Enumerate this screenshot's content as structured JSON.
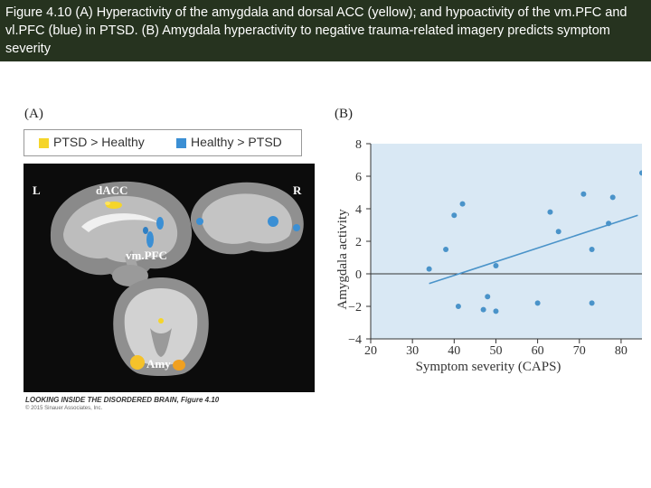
{
  "header": {
    "title": "Figure 4.10 (A) Hyperactivity of the amygdala and dorsal ACC (yellow); and hypoactivity of the vm.PFC and vl.PFC (blue) in PTSD. (B) Amygdala hyperactivity to negative trauma-related imagery predicts symptom severity"
  },
  "panel_a": {
    "label": "(A)",
    "legend": [
      {
        "label": "PTSD > Healthy",
        "color": "#f5d52a"
      },
      {
        "label": "Healthy > PTSD",
        "color": "#3b8fd4"
      }
    ],
    "labels": {
      "left": "L",
      "right": "R",
      "dacc": "dACC",
      "vmpfc": "vm.PFC",
      "amy": "Amy"
    },
    "caption": "LOOKING INSIDE THE DISORDERED BRAIN, Figure 4.10",
    "copyright": "© 2015 Sinauer Associates, Inc."
  },
  "panel_b": {
    "label": "(B)"
  },
  "colors": {
    "banner": "#26331f",
    "plot_bg": "#d9e8f4",
    "point": "#4a93c9",
    "line": "#4a93c9"
  },
  "chart_data": {
    "type": "scatter",
    "xlabel": "Symptom severity (CAPS)",
    "ylabel": "Amygdala activity",
    "xlim": [
      20,
      85
    ],
    "ylim": [
      -4,
      8
    ],
    "xticks": [
      20,
      30,
      40,
      50,
      60,
      70,
      80
    ],
    "yticks": [
      -4,
      -2,
      0,
      2,
      4,
      6,
      8
    ],
    "points": [
      {
        "x": 34,
        "y": 0.3
      },
      {
        "x": 38,
        "y": 1.5
      },
      {
        "x": 40,
        "y": 3.6
      },
      {
        "x": 41,
        "y": -2.0
      },
      {
        "x": 42,
        "y": 4.3
      },
      {
        "x": 47,
        "y": -2.2
      },
      {
        "x": 48,
        "y": -1.4
      },
      {
        "x": 50,
        "y": 0.5
      },
      {
        "x": 50,
        "y": -2.3
      },
      {
        "x": 60,
        "y": -1.8
      },
      {
        "x": 63,
        "y": 3.8
      },
      {
        "x": 65,
        "y": 2.6
      },
      {
        "x": 71,
        "y": 4.9
      },
      {
        "x": 73,
        "y": 1.5
      },
      {
        "x": 73,
        "y": -1.8
      },
      {
        "x": 77,
        "y": 3.1
      },
      {
        "x": 78,
        "y": 4.7
      },
      {
        "x": 85,
        "y": 6.2
      }
    ],
    "fit_line": {
      "x": [
        34,
        84
      ],
      "y": [
        -0.6,
        3.6
      ]
    },
    "zero_line": 0,
    "grid": false
  }
}
